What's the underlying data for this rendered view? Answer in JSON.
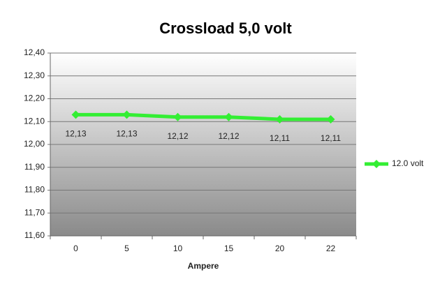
{
  "chart_data": {
    "type": "line",
    "title": "Crossload 5,0 volt",
    "x_label": "Ampere",
    "categories": [
      "0",
      "5",
      "10",
      "15",
      "20",
      "22"
    ],
    "series": [
      {
        "name": "12.0 volt",
        "color": "#33ee33",
        "values": [
          12.13,
          12.13,
          12.12,
          12.12,
          12.11,
          12.11
        ],
        "value_labels": [
          "12,13",
          "12,13",
          "12,12",
          "12,12",
          "12,11",
          "12,11"
        ]
      }
    ],
    "ylim": [
      11.6,
      12.4
    ],
    "yticks": [
      {
        "value": 11.6,
        "label": "11,60"
      },
      {
        "value": 11.7,
        "label": "11,70"
      },
      {
        "value": 11.8,
        "label": "11,80"
      },
      {
        "value": 11.9,
        "label": "11,90"
      },
      {
        "value": 12.0,
        "label": "12,00"
      },
      {
        "value": 12.1,
        "label": "12,10"
      },
      {
        "value": 12.2,
        "label": "12,20"
      },
      {
        "value": 12.3,
        "label": "12,30"
      },
      {
        "value": 12.4,
        "label": "12,40"
      }
    ],
    "grid": true,
    "legend": "right"
  }
}
